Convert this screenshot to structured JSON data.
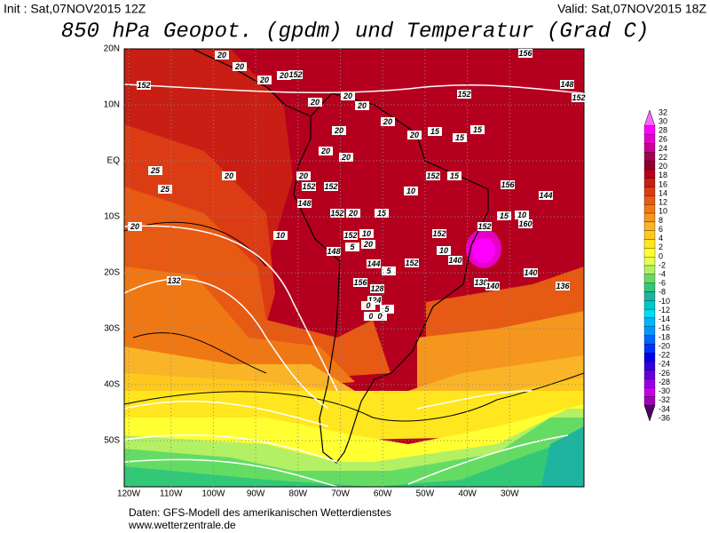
{
  "header": {
    "init": "Init : Sat,07NOV2015 12Z",
    "valid": "Valid: Sat,07NOV2015 18Z",
    "title": "850 hPa Geopot. (gpdm) und Temperatur (Grad C)"
  },
  "lat_labels": [
    "20N",
    "10N",
    "EQ",
    "10S",
    "20S",
    "30S",
    "40S",
    "50S"
  ],
  "lon_labels": [
    "120W",
    "110W",
    "100W",
    "90W",
    "80W",
    "70W",
    "60W",
    "50W",
    "40W",
    "30W"
  ],
  "colorbar": {
    "labels": [
      32,
      30,
      28,
      26,
      24,
      22,
      20,
      18,
      16,
      14,
      12,
      10,
      8,
      6,
      4,
      2,
      0,
      -2,
      -4,
      -6,
      -8,
      -10,
      -12,
      -14,
      -16,
      -18,
      -20,
      -22,
      -24,
      -26,
      -28,
      -30,
      -32,
      -34,
      -36
    ],
    "colors": [
      "#ff66ff",
      "#ff00ff",
      "#e600c8",
      "#c80096",
      "#a00050",
      "#8c0028",
      "#b4001e",
      "#c81e14",
      "#dc3c14",
      "#e65a14",
      "#f07814",
      "#f5961e",
      "#fab428",
      "#ffc81e",
      "#ffe61e",
      "#ffff32",
      "#e6ff50",
      "#b4f064",
      "#64dc64",
      "#32c878",
      "#1eb4a0",
      "#00c8c8",
      "#00dcf0",
      "#00b4ff",
      "#0096ff",
      "#0064ff",
      "#0032ff",
      "#0000e6",
      "#3200dc",
      "#6400dc",
      "#9600e6",
      "#c800e6",
      "#a000b4",
      "#500064"
    ]
  },
  "contour_labels": [
    "20",
    "152",
    "20",
    "156",
    "20",
    "20",
    "152",
    "20",
    "152",
    "20",
    "20",
    "148",
    "152",
    "20",
    "20",
    "20",
    "15",
    "15",
    "15",
    "20",
    "20",
    "25",
    "25",
    "20",
    "152",
    "15",
    "10",
    "152",
    "152",
    "148",
    "20",
    "20",
    "152",
    "20",
    "15",
    "156",
    "144",
    "152",
    "15",
    "10",
    "160",
    "10",
    "152",
    "10",
    "20",
    "5",
    "148",
    "152",
    "10",
    "140",
    "5",
    "144",
    "156",
    "152",
    "140",
    "138",
    "140",
    "136",
    "132",
    "128",
    "124",
    "5",
    "0",
    "0",
    "0"
  ],
  "footer": {
    "source": "Daten: GFS-Modell des amerikanischen Wetterdienstes",
    "url": "www.wetterzentrale.de"
  }
}
